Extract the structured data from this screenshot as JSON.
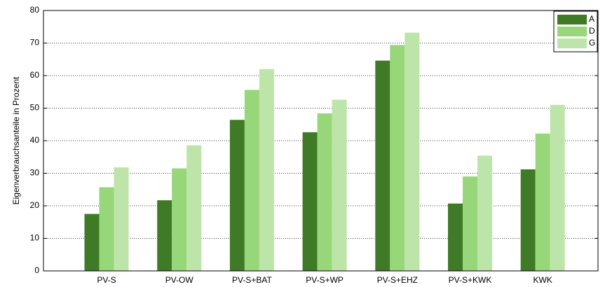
{
  "chart_data": {
    "type": "bar",
    "y_label": "Eigenverbrauchsanteile in Prozent",
    "categories": [
      "PV-S",
      "PV-OW",
      "PV-S+BAT",
      "PV-S+WP",
      "PV-S+EHZ",
      "PV-S+KWK",
      "KWK"
    ],
    "series": [
      {
        "name": "A",
        "color": "#3f7a26",
        "values": [
          17.5,
          21.7,
          46.4,
          42.6,
          64.6,
          20.7,
          31.2
        ]
      },
      {
        "name": "D",
        "color": "#98d67a",
        "values": [
          25.7,
          31.5,
          55.6,
          48.4,
          69.4,
          29,
          42.2
        ]
      },
      {
        "name": "G",
        "color": "#bde5a9",
        "values": [
          31.8,
          38.6,
          62,
          52.6,
          73.2,
          35.4,
          51
        ]
      }
    ],
    "ylim": [
      0,
      80
    ],
    "yticks": [
      0,
      10,
      20,
      30,
      40,
      50,
      60,
      70,
      80
    ],
    "grid": true,
    "legend": "upper-right"
  }
}
